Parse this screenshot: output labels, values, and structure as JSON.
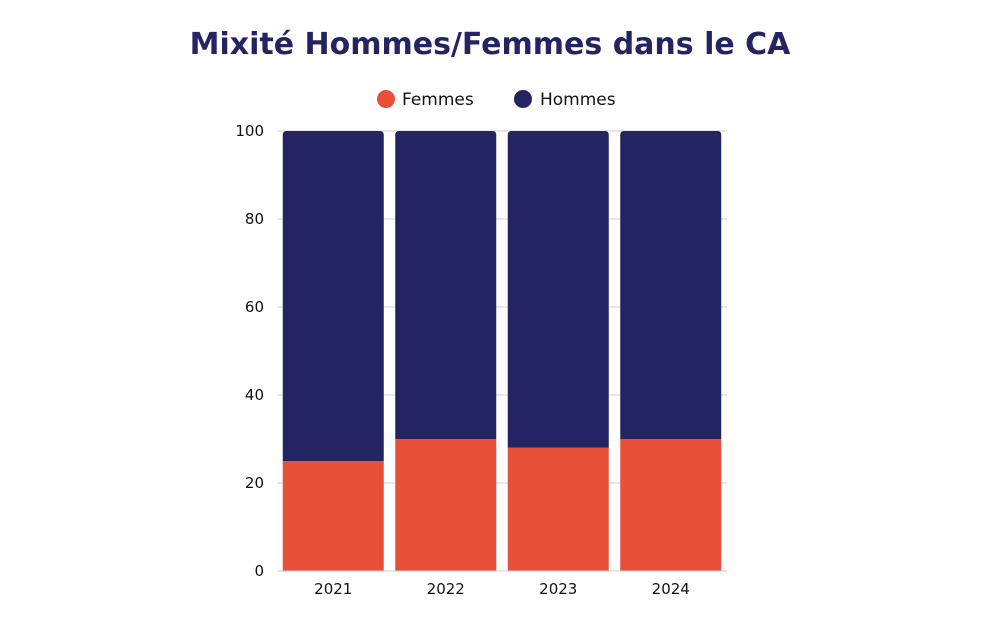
{
  "chart_data": {
    "type": "bar",
    "stacked": true,
    "title": "Mixité Hommes/Femmes dans le CA",
    "xlabel": "",
    "ylabel": "",
    "categories": [
      "2021",
      "2022",
      "2023",
      "2024"
    ],
    "series": [
      {
        "name": "Femmes",
        "values": [
          25,
          30,
          28,
          30
        ],
        "color": "#e8503a"
      },
      {
        "name": "Hommes",
        "values": [
          75,
          70,
          72,
          70
        ],
        "color": "#242463"
      }
    ],
    "ylim": [
      0,
      100
    ],
    "yticks": [
      "0",
      "20",
      "40",
      "60",
      "80",
      "100"
    ],
    "grid": true,
    "legend_position": "top-center",
    "title_color": "#242463",
    "text_color": "#111111",
    "grid_color": "#cccccc"
  }
}
